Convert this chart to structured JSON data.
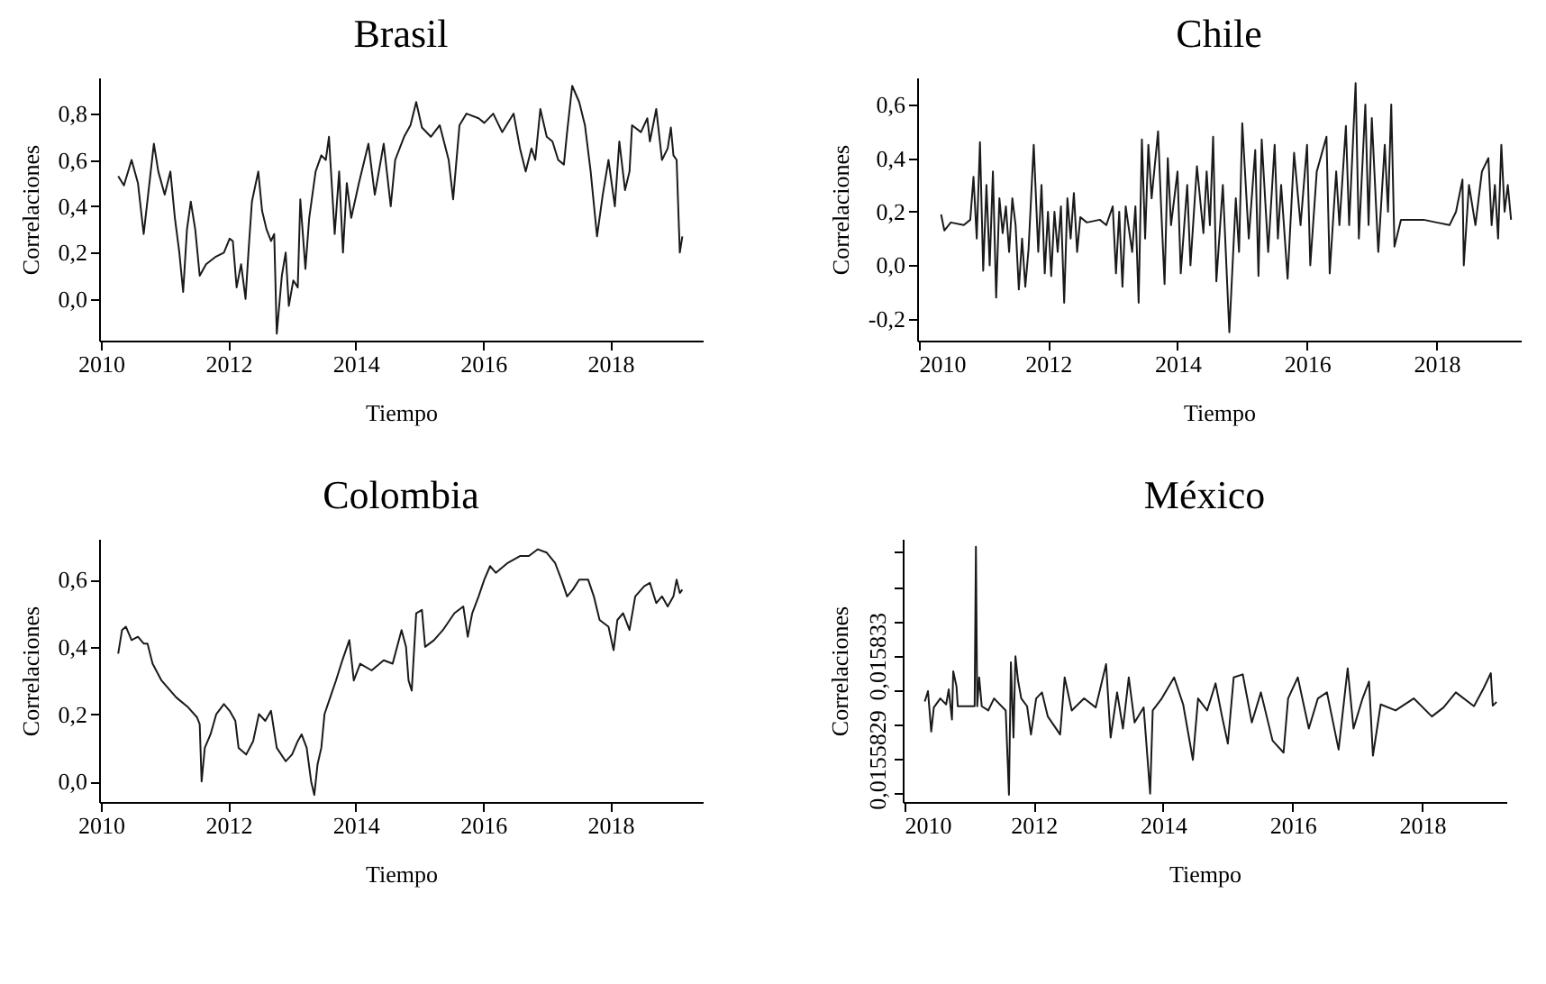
{
  "chart_data": [
    {
      "type": "line",
      "title": "Brasil",
      "xlabel": "Tiempo",
      "ylabel": "Correlaciones",
      "xlim": [
        2009.97,
        2019.45
      ],
      "xticks": [
        2010,
        2012,
        2014,
        2016,
        2018
      ],
      "ylim": [
        -0.18,
        0.956
      ],
      "yticks": [
        {
          "value": 0,
          "label": "0,0"
        },
        {
          "value": 0.2,
          "label": "0,2"
        },
        {
          "value": 0.4,
          "label": "0,4"
        },
        {
          "value": 0.6,
          "label": "0,6"
        },
        {
          "value": 0.8,
          "label": "0,8"
        }
      ],
      "x": [
        2010.27,
        2010.36,
        2010.48,
        2010.58,
        2010.67,
        2010.83,
        2010.9,
        2011.0,
        2011.09,
        2011.16,
        2011.23,
        2011.29,
        2011.35,
        2011.41,
        2011.48,
        2011.55,
        2011.65,
        2011.79,
        2011.93,
        2012.02,
        2012.07,
        2012.13,
        2012.2,
        2012.27,
        2012.32,
        2012.37,
        2012.47,
        2012.53,
        2012.6,
        2012.67,
        2012.72,
        2012.76,
        2012.84,
        2012.9,
        2012.95,
        2013.02,
        2013.09,
        2013.13,
        2013.21,
        2013.27,
        2013.37,
        2013.46,
        2013.53,
        2013.58,
        2013.67,
        2013.74,
        2013.8,
        2013.86,
        2013.93,
        2014.05,
        2014.2,
        2014.3,
        2014.44,
        2014.55,
        2014.62,
        2014.76,
        2014.86,
        2014.95,
        2015.04,
        2015.18,
        2015.32,
        2015.46,
        2015.53,
        2015.63,
        2015.74,
        2015.93,
        2016.02,
        2016.16,
        2016.3,
        2016.48,
        2016.58,
        2016.67,
        2016.76,
        2016.82,
        2016.9,
        2017.0,
        2017.09,
        2017.18,
        2017.27,
        2017.32,
        2017.4,
        2017.51,
        2017.6,
        2017.69,
        2017.79,
        2017.88,
        2017.97,
        2018.07,
        2018.14,
        2018.23,
        2018.3,
        2018.34,
        2018.48,
        2018.58,
        2018.62,
        2018.72,
        2018.81,
        2018.9,
        2018.95,
        2018.99,
        2019.04,
        2019.09,
        2019.13
      ],
      "series": [
        {
          "color": "#1a1a1a",
          "values": [
            0.53,
            0.49,
            0.6,
            0.5,
            0.28,
            0.67,
            0.55,
            0.45,
            0.55,
            0.35,
            0.2,
            0.03,
            0.3,
            0.42,
            0.3,
            0.1,
            0.15,
            0.18,
            0.2,
            0.26,
            0.25,
            0.05,
            0.15,
            0.0,
            0.22,
            0.42,
            0.55,
            0.38,
            0.3,
            0.25,
            0.28,
            -0.15,
            0.1,
            0.2,
            -0.03,
            0.08,
            0.05,
            0.43,
            0.13,
            0.35,
            0.55,
            0.62,
            0.6,
            0.7,
            0.28,
            0.55,
            0.2,
            0.5,
            0.35,
            0.5,
            0.67,
            0.45,
            0.67,
            0.4,
            0.6,
            0.7,
            0.75,
            0.85,
            0.74,
            0.7,
            0.75,
            0.6,
            0.43,
            0.75,
            0.8,
            0.78,
            0.76,
            0.8,
            0.72,
            0.8,
            0.65,
            0.55,
            0.65,
            0.6,
            0.82,
            0.7,
            0.68,
            0.6,
            0.58,
            0.72,
            0.92,
            0.85,
            0.75,
            0.55,
            0.27,
            0.45,
            0.6,
            0.4,
            0.68,
            0.47,
            0.55,
            0.75,
            0.72,
            0.78,
            0.68,
            0.82,
            0.6,
            0.65,
            0.74,
            0.62,
            0.6,
            0.2,
            0.27
          ]
        }
      ]
    },
    {
      "type": "line",
      "title": "Chile",
      "xlabel": "Tiempo",
      "ylabel": "Correlaciones",
      "xlim": [
        2009.98,
        2019.3
      ],
      "xticks": [
        2010,
        2012,
        2014,
        2016,
        2018
      ],
      "ylim": [
        -0.281,
        0.701
      ],
      "yticks": [
        {
          "value": -0.2,
          "label": "-0,2"
        },
        {
          "value": 0,
          "label": "0,0"
        },
        {
          "value": 0.2,
          "label": "0,2"
        },
        {
          "value": 0.4,
          "label": "0,4"
        },
        {
          "value": 0.6,
          "label": "0,6"
        }
      ],
      "x": [
        2010.35,
        2010.4,
        2010.5,
        2010.7,
        2010.8,
        2010.85,
        2010.9,
        2010.95,
        2011.0,
        2011.05,
        2011.1,
        2011.15,
        2011.2,
        2011.25,
        2011.3,
        2011.35,
        2011.4,
        2011.45,
        2011.5,
        2011.55,
        2011.6,
        2011.65,
        2011.7,
        2011.78,
        2011.85,
        2011.9,
        2011.95,
        2012.0,
        2012.05,
        2012.1,
        2012.15,
        2012.2,
        2012.25,
        2012.3,
        2012.35,
        2012.4,
        2012.45,
        2012.5,
        2012.6,
        2012.8,
        2012.9,
        2013.0,
        2013.05,
        2013.1,
        2013.15,
        2013.2,
        2013.3,
        2013.35,
        2013.4,
        2013.45,
        2013.5,
        2013.55,
        2013.6,
        2013.7,
        2013.75,
        2013.8,
        2013.85,
        2013.9,
        2014.0,
        2014.05,
        2014.15,
        2014.2,
        2014.3,
        2014.4,
        2014.45,
        2014.5,
        2014.55,
        2014.6,
        2014.7,
        2014.8,
        2014.9,
        2014.95,
        2015.0,
        2015.1,
        2015.2,
        2015.25,
        2015.3,
        2015.4,
        2015.5,
        2015.55,
        2015.6,
        2015.7,
        2015.8,
        2015.9,
        2016.0,
        2016.05,
        2016.15,
        2016.3,
        2016.35,
        2016.45,
        2016.5,
        2016.6,
        2016.65,
        2016.75,
        2016.8,
        2016.9,
        2016.95,
        2017.0,
        2017.1,
        2017.2,
        2017.25,
        2017.3,
        2017.35,
        2017.45,
        2017.8,
        2018.0,
        2018.2,
        2018.3,
        2018.4,
        2018.42,
        2018.5,
        2018.6,
        2018.7,
        2018.8,
        2018.85,
        2018.9,
        2018.95,
        2019.0,
        2019.05,
        2019.1,
        2019.15
      ],
      "series": [
        {
          "color": "#1a1a1a",
          "values": [
            0.19,
            0.13,
            0.16,
            0.15,
            0.17,
            0.33,
            0.1,
            0.46,
            -0.02,
            0.3,
            0.0,
            0.35,
            -0.12,
            0.25,
            0.12,
            0.22,
            0.05,
            0.25,
            0.15,
            -0.09,
            0.1,
            -0.08,
            0.06,
            0.45,
            0.05,
            0.3,
            -0.03,
            0.2,
            -0.04,
            0.2,
            0.05,
            0.22,
            -0.14,
            0.25,
            0.1,
            0.27,
            0.05,
            0.18,
            0.16,
            0.17,
            0.15,
            0.22,
            -0.03,
            0.2,
            -0.08,
            0.22,
            0.05,
            0.22,
            -0.14,
            0.47,
            0.1,
            0.45,
            0.25,
            0.5,
            0.2,
            -0.07,
            0.4,
            0.15,
            0.35,
            -0.03,
            0.3,
            0.0,
            0.37,
            0.12,
            0.35,
            0.15,
            0.48,
            -0.06,
            0.3,
            -0.25,
            0.25,
            0.05,
            0.53,
            0.1,
            0.43,
            -0.04,
            0.47,
            0.05,
            0.45,
            0.1,
            0.3,
            -0.05,
            0.42,
            0.15,
            0.45,
            0.0,
            0.35,
            0.48,
            -0.03,
            0.35,
            0.15,
            0.52,
            0.15,
            0.68,
            0.1,
            0.6,
            0.15,
            0.55,
            0.05,
            0.45,
            0.2,
            0.6,
            0.07,
            0.17,
            0.17,
            0.16,
            0.15,
            0.2,
            0.32,
            0.0,
            0.3,
            0.15,
            0.35,
            0.4,
            0.15,
            0.3,
            0.1,
            0.45,
            0.2,
            0.3,
            0.17
          ]
        }
      ]
    },
    {
      "type": "line",
      "title": "Colombia",
      "xlabel": "Tiempo",
      "ylabel": "Correlaciones",
      "xlim": [
        2009.97,
        2019.45
      ],
      "xticks": [
        2010,
        2012,
        2014,
        2016,
        2018
      ],
      "ylim": [
        -0.061,
        0.721
      ],
      "yticks": [
        {
          "value": 0,
          "label": "0,0"
        },
        {
          "value": 0.2,
          "label": "0,2"
        },
        {
          "value": 0.4,
          "label": "0,4"
        },
        {
          "value": 0.6,
          "label": "0,6"
        }
      ],
      "x": [
        2010.27,
        2010.33,
        2010.39,
        2010.48,
        2010.58,
        2010.67,
        2010.73,
        2010.81,
        2010.95,
        2011.18,
        2011.37,
        2011.51,
        2011.55,
        2011.58,
        2011.63,
        2011.72,
        2011.81,
        2011.93,
        2012.02,
        2012.11,
        2012.16,
        2012.28,
        2012.39,
        2012.48,
        2012.58,
        2012.67,
        2012.76,
        2012.9,
        2013.0,
        2013.09,
        2013.15,
        2013.23,
        2013.3,
        2013.35,
        2013.4,
        2013.46,
        2013.51,
        2013.6,
        2013.69,
        2013.79,
        2013.9,
        2013.97,
        2014.07,
        2014.25,
        2014.44,
        2014.58,
        2014.72,
        2014.79,
        2014.83,
        2014.88,
        2014.95,
        2015.04,
        2015.09,
        2015.23,
        2015.37,
        2015.55,
        2015.69,
        2015.76,
        2015.83,
        2015.93,
        2016.02,
        2016.11,
        2016.2,
        2016.39,
        2016.58,
        2016.72,
        2016.86,
        2017.0,
        2017.13,
        2017.23,
        2017.32,
        2017.41,
        2017.51,
        2017.65,
        2017.74,
        2017.83,
        2017.97,
        2018.05,
        2018.11,
        2018.2,
        2018.3,
        2018.39,
        2018.53,
        2018.62,
        2018.72,
        2018.81,
        2018.9,
        2018.99,
        2019.04,
        2019.09,
        2019.13
      ],
      "series": [
        {
          "color": "#1a1a1a",
          "values": [
            0.38,
            0.45,
            0.46,
            0.42,
            0.43,
            0.41,
            0.41,
            0.35,
            0.3,
            0.25,
            0.22,
            0.19,
            0.17,
            0.0,
            0.1,
            0.14,
            0.2,
            0.23,
            0.21,
            0.18,
            0.1,
            0.08,
            0.12,
            0.2,
            0.18,
            0.21,
            0.1,
            0.06,
            0.08,
            0.12,
            0.14,
            0.1,
            0.0,
            -0.04,
            0.05,
            0.1,
            0.2,
            0.25,
            0.3,
            0.36,
            0.42,
            0.3,
            0.35,
            0.33,
            0.36,
            0.35,
            0.45,
            0.4,
            0.3,
            0.27,
            0.5,
            0.51,
            0.4,
            0.42,
            0.45,
            0.5,
            0.52,
            0.43,
            0.5,
            0.55,
            0.6,
            0.64,
            0.62,
            0.65,
            0.67,
            0.67,
            0.69,
            0.68,
            0.65,
            0.6,
            0.55,
            0.57,
            0.6,
            0.6,
            0.55,
            0.48,
            0.46,
            0.39,
            0.48,
            0.5,
            0.45,
            0.55,
            0.58,
            0.59,
            0.53,
            0.55,
            0.52,
            0.55,
            0.6,
            0.56,
            0.57
          ]
        }
      ]
    },
    {
      "type": "line",
      "title": "México",
      "xlabel": "Tiempo",
      "ylabel": "Correlaciones",
      "xlim": [
        2009.98,
        2019.3
      ],
      "xticks": [
        2010,
        2012,
        2014,
        2016,
        2018
      ],
      "ylim": [
        0.0154796,
        0.0161156
      ],
      "yticks": [
        {
          "value": 0.0154999,
          "label": null
        },
        {
          "value": 0.0155829,
          "label": "0,0155829"
        },
        {
          "value": 0.0156673,
          "label": null
        },
        {
          "value": 0.0157503,
          "label": null
        },
        {
          "value": 0.015833,
          "label": "0,015833"
        },
        {
          "value": 0.0159162,
          "label": null
        },
        {
          "value": 0.0159992,
          "label": null
        },
        {
          "value": 0.0160836,
          "label": null
        }
      ],
      "x": [
        2010.32,
        2010.37,
        2010.42,
        2010.46,
        2010.56,
        2010.65,
        2010.69,
        2010.74,
        2010.76,
        2010.81,
        2010.83,
        2011.09,
        2011.11,
        2011.13,
        2011.16,
        2011.2,
        2011.3,
        2011.39,
        2011.57,
        2011.62,
        2011.65,
        2011.69,
        2011.72,
        2011.76,
        2011.81,
        2011.9,
        2011.96,
        2012.04,
        2012.13,
        2012.22,
        2012.41,
        2012.48,
        2012.59,
        2012.78,
        2012.96,
        2013.12,
        2013.19,
        2013.29,
        2013.38,
        2013.47,
        2013.56,
        2013.7,
        2013.8,
        2013.84,
        2013.98,
        2014.17,
        2014.31,
        2014.46,
        2014.54,
        2014.68,
        2014.81,
        2014.91,
        2015.0,
        2015.09,
        2015.23,
        2015.37,
        2015.51,
        2015.69,
        2015.86,
        2015.93,
        2016.08,
        2016.25,
        2016.39,
        2016.53,
        2016.71,
        2016.85,
        2016.94,
        2017.08,
        2017.18,
        2017.24,
        2017.36,
        2017.59,
        2017.87,
        2018.15,
        2018.33,
        2018.52,
        2018.8,
        2018.94,
        2019.06,
        2019.09,
        2019.15
      ],
      "series": [
        {
          "color": "#1a1a1a",
          "values": [
            0.0157226,
            0.0157474,
            0.0156499,
            0.0157081,
            0.0157299,
            0.0157154,
            0.0157517,
            0.015679,
            0.0157954,
            0.015759,
            0.015711,
            0.015711,
            0.0160967,
            0.015711,
            0.0157808,
            0.015711,
            0.0157008,
            0.0157299,
            0.0157008,
            0.015497,
            0.0158172,
            0.0156353,
            0.0158318,
            0.0157736,
            0.0157299,
            0.015711,
            0.0156426,
            0.0157299,
            0.0157445,
            0.0156862,
            0.0156426,
            0.0157808,
            0.0157008,
            0.0157299,
            0.0157081,
            0.0158129,
            0.0156353,
            0.0157445,
            0.0156571,
            0.0157808,
            0.0156717,
            0.0157081,
            0.0154999,
            0.0157008,
            0.0157299,
            0.0157808,
            0.0157154,
            0.0155814,
            0.0157299,
            0.0157008,
            0.0157663,
            0.0156862,
            0.0156207,
            0.0157808,
            0.0157881,
            0.0156717,
            0.0157445,
            0.015628,
            0.0155989,
            0.0157299,
            0.0157808,
            0.0156571,
            0.0157299,
            0.0157445,
            0.0156062,
            0.0158027,
            0.0156571,
            0.0157299,
            0.0157707,
            0.0155916,
            0.0157154,
            0.0157008,
            0.0157299,
            0.0156862,
            0.0157081,
            0.0157445,
            0.015711,
            0.0157517,
            0.015791,
            0.0157124,
            0.0157212
          ]
        }
      ]
    }
  ]
}
